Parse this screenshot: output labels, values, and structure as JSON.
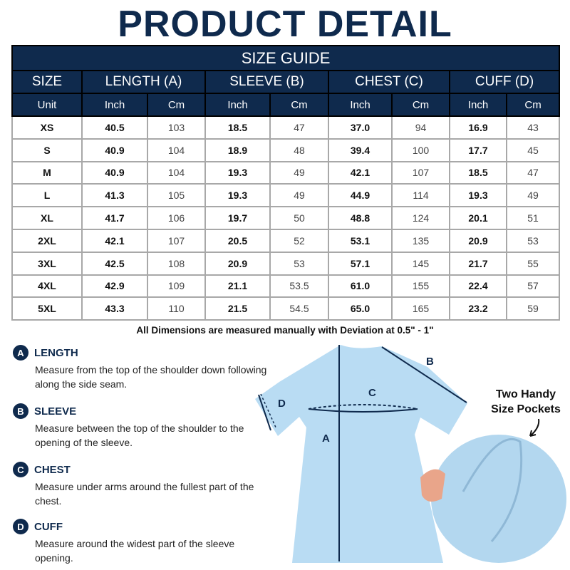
{
  "title": "PRODUCT DETAIL",
  "table": {
    "caption": "SIZE GUIDE",
    "headers": [
      "SIZE",
      "LENGTH (A)",
      "SLEEVE (B)",
      "CHEST (C)",
      "CUFF (D)"
    ],
    "units": [
      "Unit",
      "Inch",
      "Cm",
      "Inch",
      "Cm",
      "Inch",
      "Cm",
      "Inch",
      "Cm"
    ],
    "rows": [
      [
        "XS",
        "40.5",
        "103",
        "18.5",
        "47",
        "37.0",
        "94",
        "16.9",
        "43"
      ],
      [
        "S",
        "40.9",
        "104",
        "18.9",
        "48",
        "39.4",
        "100",
        "17.7",
        "45"
      ],
      [
        "M",
        "40.9",
        "104",
        "19.3",
        "49",
        "42.1",
        "107",
        "18.5",
        "47"
      ],
      [
        "L",
        "41.3",
        "105",
        "19.3",
        "49",
        "44.9",
        "114",
        "19.3",
        "49"
      ],
      [
        "XL",
        "41.7",
        "106",
        "19.7",
        "50",
        "48.8",
        "124",
        "20.1",
        "51"
      ],
      [
        "2XL",
        "42.1",
        "107",
        "20.5",
        "52",
        "53.1",
        "135",
        "20.9",
        "53"
      ],
      [
        "3XL",
        "42.5",
        "108",
        "20.9",
        "53",
        "57.1",
        "145",
        "21.7",
        "55"
      ],
      [
        "4XL",
        "42.9",
        "109",
        "21.1",
        "53.5",
        "61.0",
        "155",
        "22.4",
        "57"
      ],
      [
        "5XL",
        "43.3",
        "110",
        "21.5",
        "54.5",
        "65.0",
        "165",
        "23.2",
        "59"
      ]
    ]
  },
  "note": "All Dimensions are measured manually with Deviation at 0.5\" - 1\"",
  "measurements": [
    {
      "letter": "A",
      "title": "LENGTH",
      "desc": "Measure from the top of  the shoulder down following along the side seam."
    },
    {
      "letter": "B",
      "title": "SLEEVE",
      "desc": "Measure between the top of  the shoulder to the opening of the sleeve."
    },
    {
      "letter": "C",
      "title": "CHEST",
      "desc": "Measure under arms around the fullest part of the chest."
    },
    {
      "letter": "D",
      "title": "CUFF",
      "desc": "Measure around the widest part of the sleeve opening."
    }
  ],
  "diagram_labels": {
    "a": "A",
    "b": "B",
    "c": "C",
    "d": "D"
  },
  "pockets_label": [
    "Two Handy",
    "Size Pockets"
  ],
  "colors": {
    "navy": "#0f2a4d",
    "garment": "#b9dcf3"
  }
}
